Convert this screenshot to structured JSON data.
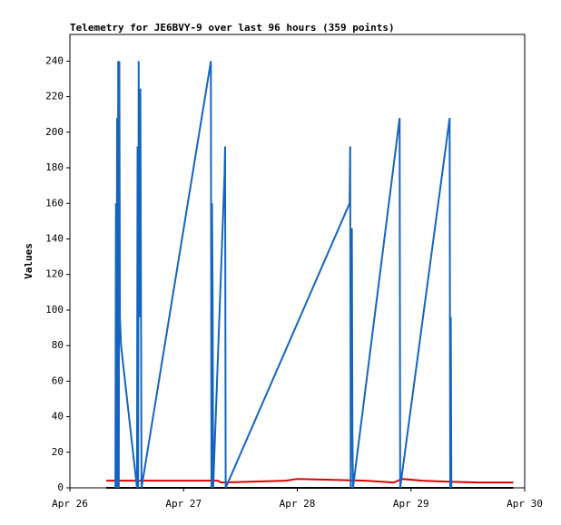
{
  "chart_data": {
    "type": "line",
    "title": "Telemetry for JE6BVY-9 over last 96 hours (359 points)",
    "y_label": "Values",
    "xlim": [
      0,
      4
    ],
    "xticks": [
      {
        "value": 0,
        "label": "Apr 26"
      },
      {
        "value": 1,
        "label": "Apr 27"
      },
      {
        "value": 2,
        "label": "Apr 28"
      },
      {
        "value": 3,
        "label": "Apr 29"
      },
      {
        "value": 4,
        "label": "Apr 30"
      }
    ],
    "ylim": [
      0,
      255
    ],
    "yticks": [
      0,
      20,
      40,
      60,
      80,
      100,
      120,
      140,
      160,
      180,
      200,
      220,
      240
    ],
    "grid": false,
    "series": [
      {
        "color": "#e00000",
        "x": [
          0.32,
          1.3,
          1.33,
          1.9,
          2.0,
          2.3,
          2.6,
          2.85,
          2.92,
          3.1,
          3.3,
          3.6,
          3.9
        ],
        "values": [
          4,
          4,
          3,
          4,
          5,
          4.5,
          4,
          3,
          5,
          4,
          3.5,
          3,
          3
        ]
      },
      {
        "color": "#000000",
        "x": [
          0.32,
          3.9
        ],
        "values": [
          0,
          0
        ]
      },
      {
        "color": "#1565c0",
        "x": [
          0.4,
          0.405,
          0.41,
          0.415,
          0.42,
          0.425,
          0.43,
          0.435,
          0.44,
          0.45,
          0.59,
          0.595,
          0.6,
          0.605,
          0.61,
          0.615,
          0.62,
          0.63,
          1.24,
          1.245,
          1.25,
          1.255,
          1.26,
          1.36,
          1.365,
          1.37,
          2.46,
          2.465,
          2.47,
          2.475,
          2.48,
          2.485,
          2.49,
          2.9,
          2.905,
          3.34,
          3.345,
          3.35,
          3.355
        ],
        "values": [
          0,
          160,
          0,
          208,
          0,
          240,
          0,
          240,
          96,
          80,
          0,
          192,
          0,
          240,
          96,
          224,
          224,
          0,
          240,
          0,
          160,
          112,
          0,
          176,
          192,
          0,
          160,
          192,
          0,
          88,
          146,
          30,
          0,
          208,
          0,
          208,
          0,
          96,
          0
        ]
      }
    ]
  }
}
